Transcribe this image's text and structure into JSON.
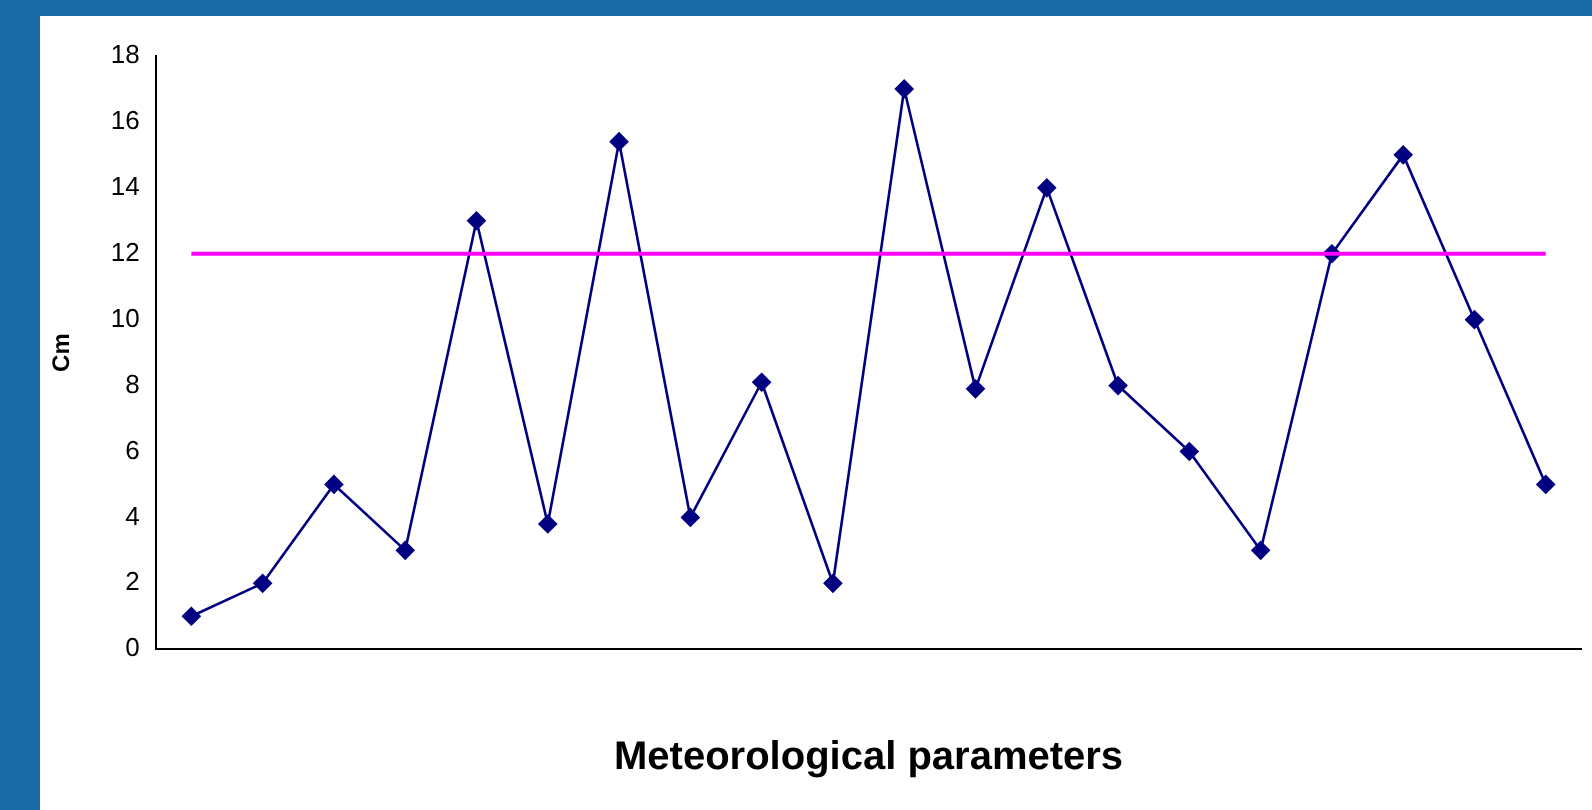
{
  "chart_data": {
    "type": "line",
    "xlabel": "Meteorological parameters",
    "ylabel": "Cm",
    "categories": [
      null,
      null,
      null,
      null,
      null,
      null,
      null,
      null,
      null,
      null,
      null,
      null,
      null,
      null,
      null,
      null,
      null,
      null,
      null,
      null
    ],
    "series": [
      {
        "color": "#000080",
        "values": [
          1,
          2,
          5,
          3,
          13,
          3.8,
          15.4,
          4,
          8.1,
          2,
          17,
          7.9,
          14,
          8,
          6,
          3,
          12,
          15,
          10,
          5
        ]
      }
    ],
    "ylim": [
      0,
      18
    ],
    "yticks": [
      0,
      2,
      4,
      6,
      8,
      10,
      12,
      14,
      16,
      18
    ],
    "ref_lines": [
      {
        "axis": "y",
        "value": 12,
        "color": "#ff00ff"
      }
    ],
    "grid": false,
    "legend": false,
    "marker": "diamond",
    "line_style": "solid"
  }
}
